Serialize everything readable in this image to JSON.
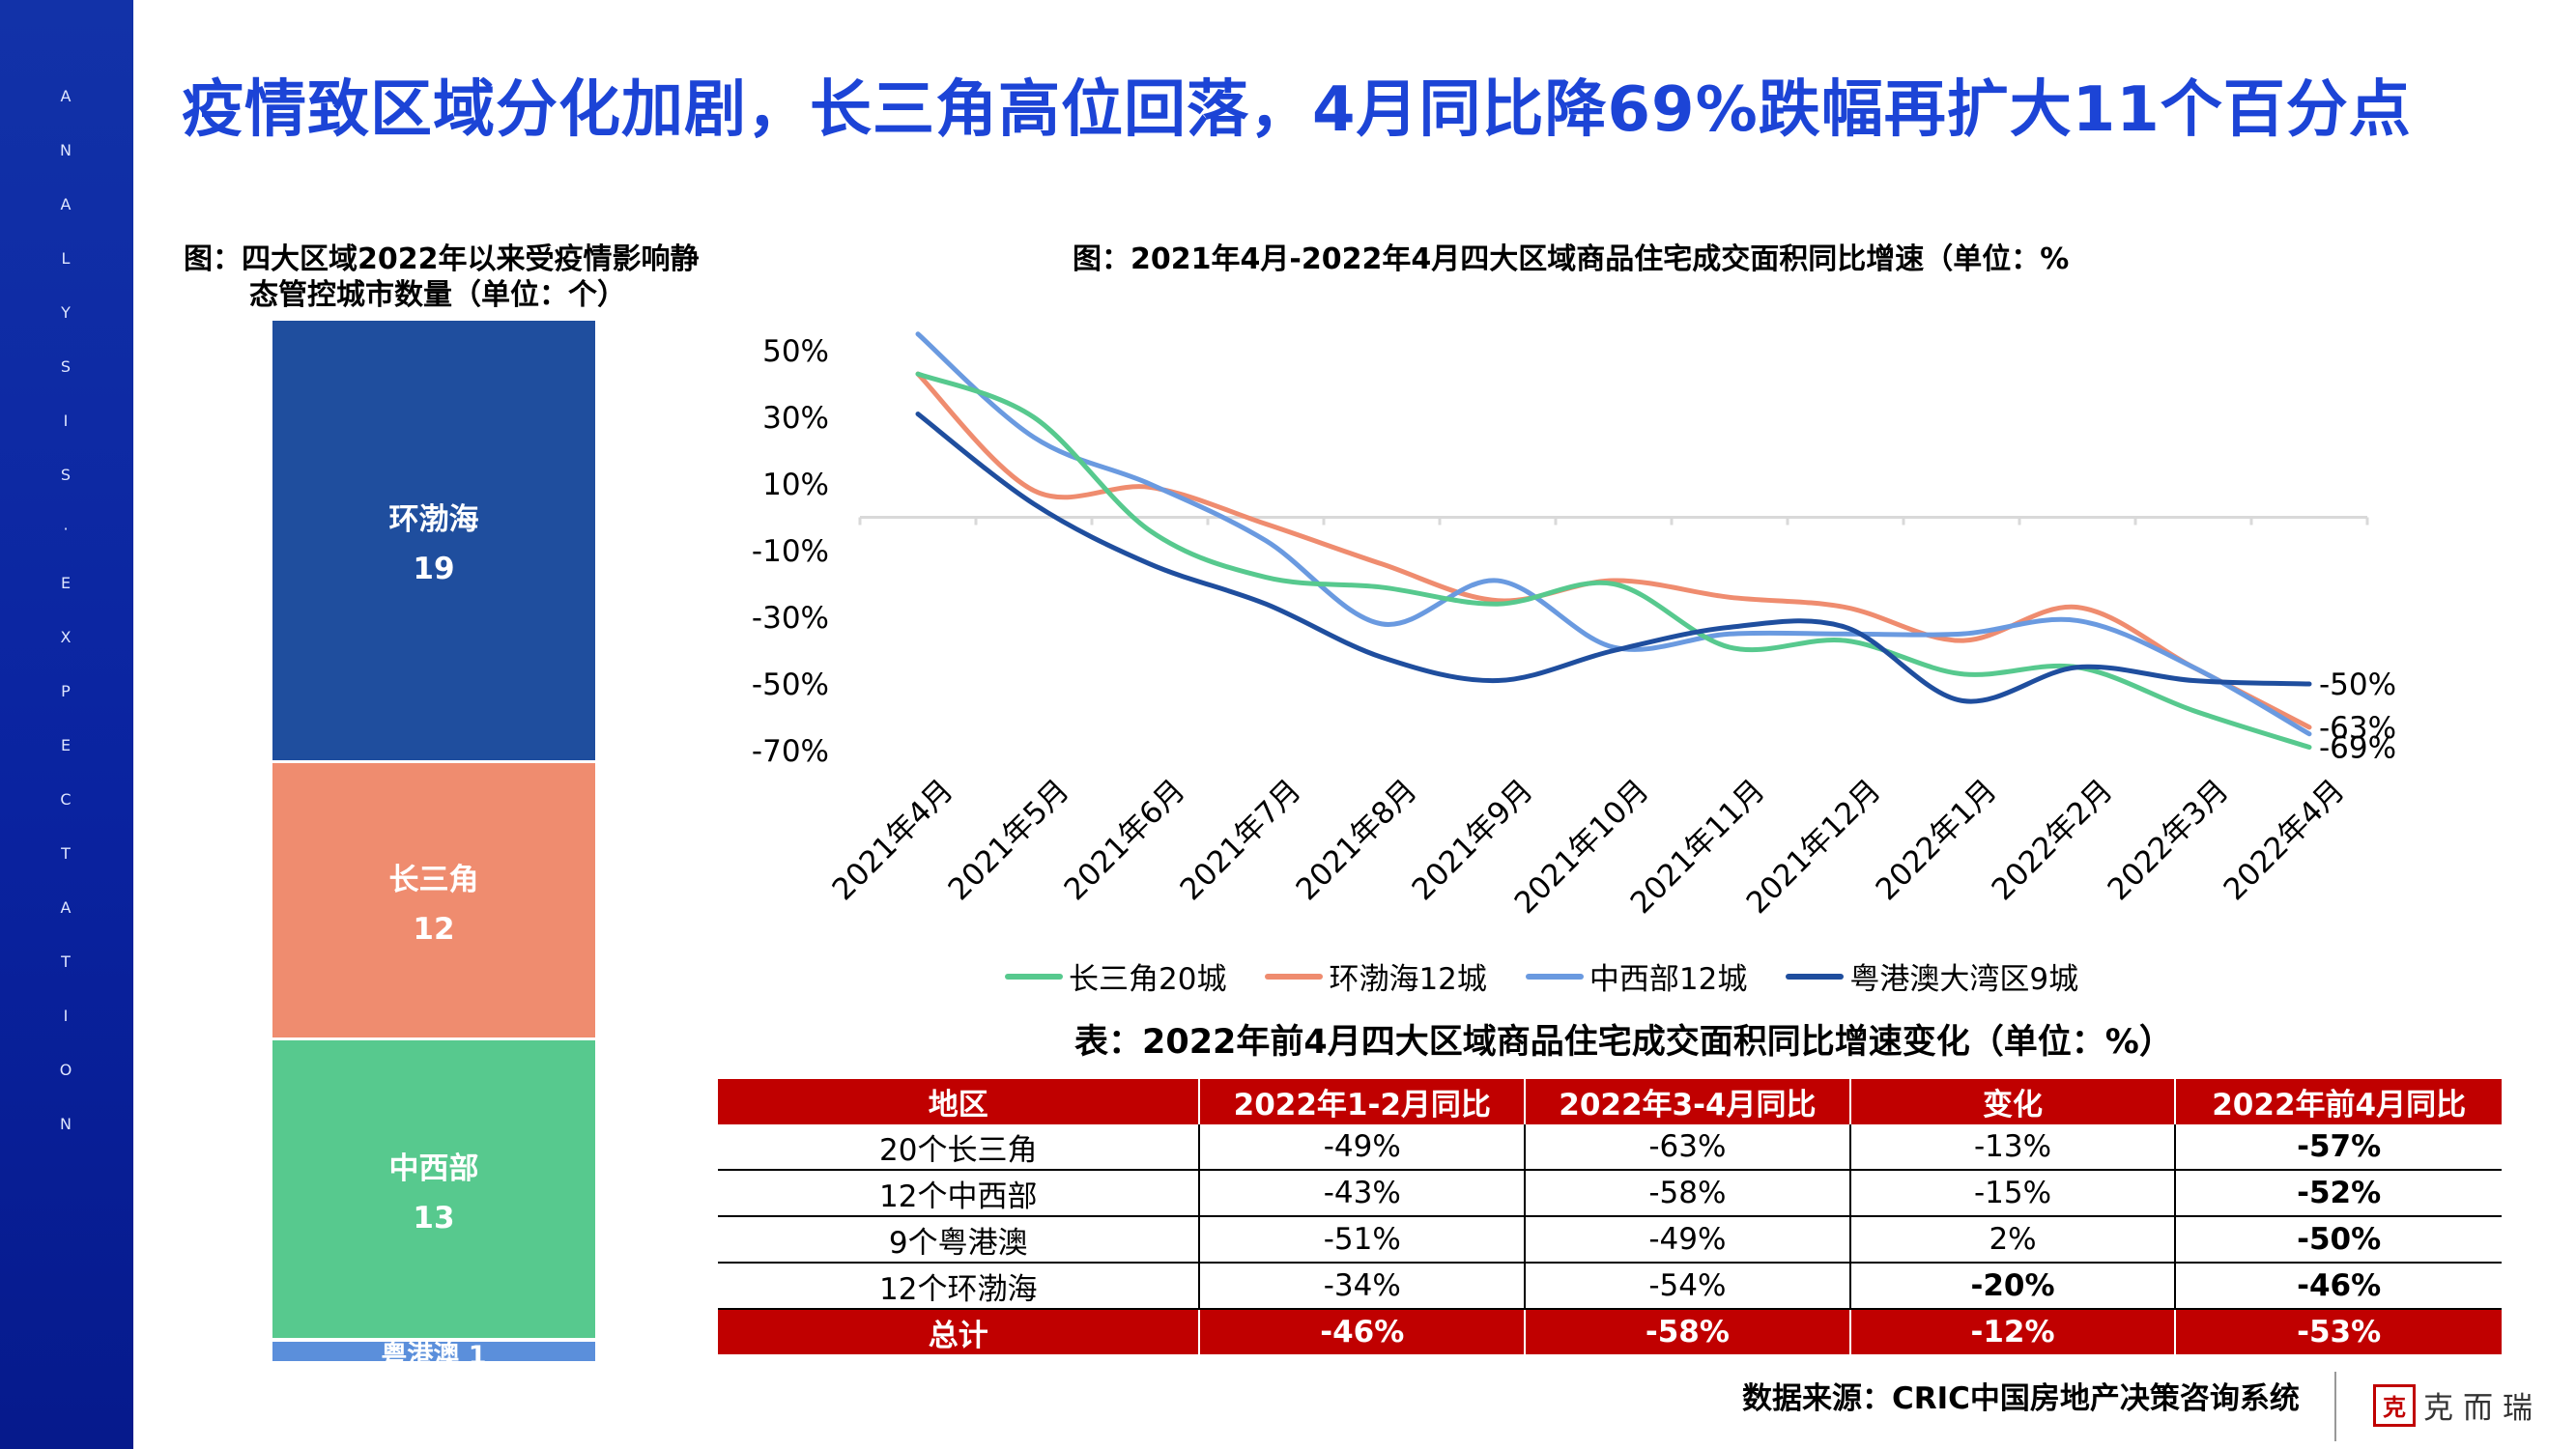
{
  "headline": "疫情致区域分化加剧，长三角高位回落，4月同比降69%跌幅再扩大11个百分点",
  "sidebar": {
    "letters": [
      "A",
      "N",
      "A",
      "L",
      "Y",
      "S",
      "I",
      "S",
      "·",
      "E",
      "X",
      "P",
      "E",
      "C",
      "T",
      "A",
      "T",
      "I",
      "O",
      "N"
    ]
  },
  "stack_chart": {
    "caption_line1": "图：四大区域2022年以来受疫情影响静",
    "caption_line2": "态管控城市数量（单位：个）",
    "segments": [
      {
        "name": "环渤海",
        "value": 19,
        "value_label": "19",
        "color": "#1f4e9e"
      },
      {
        "name": "长三角",
        "value": 12,
        "value_label": "12",
        "color": "#ef8c6f"
      },
      {
        "name": "中西部",
        "value": 13,
        "value_label": "13",
        "color": "#57c98e"
      },
      {
        "name": "粤港澳",
        "value": 1,
        "value_label": "粤港澳 1",
        "color": "#5b8fdb"
      }
    ]
  },
  "chart_data": {
    "type": "line",
    "title": "图：2021年4月-2022年4月四大区域商品住宅成交面积同比增速（单位：%",
    "x": [
      "2021年4月",
      "2021年5月",
      "2021年6月",
      "2021年7月",
      "2021年8月",
      "2021年9月",
      "2021年10月",
      "2021年11月",
      "2021年12月",
      "2022年1月",
      "2022年2月",
      "2022年3月",
      "2022年4月"
    ],
    "y_ticks": [
      "50%",
      "30%",
      "10%",
      "-10%",
      "-30%",
      "-50%",
      "-70%"
    ],
    "ylim": [
      -70,
      50
    ],
    "series": [
      {
        "name": "长三角20城",
        "color": "#57c98e",
        "values": [
          43,
          30,
          -4,
          -18,
          -21,
          -26,
          -20,
          -39,
          -37,
          -47,
          -45,
          -58,
          -69
        ]
      },
      {
        "name": "环渤海12城",
        "color": "#ef8c6f",
        "values": [
          43,
          8,
          9,
          -2,
          -14,
          -25,
          -19,
          -24,
          -27,
          -37,
          -27,
          -45,
          -63
        ]
      },
      {
        "name": "中西部12城",
        "color": "#6a9ae0",
        "values": [
          55,
          24,
          10,
          -7,
          -32,
          -19,
          -39,
          -35,
          -35,
          -35,
          -31,
          -45,
          -65
        ]
      },
      {
        "name": "粤港澳大湾区9城",
        "color": "#1f4e9e",
        "values": [
          31,
          4,
          -14,
          -26,
          -42,
          -49,
          -40,
          -33,
          -33,
          -55,
          -45,
          -49,
          -50
        ]
      }
    ],
    "end_labels": [
      "-50%",
      "-63%",
      "-69%"
    ],
    "legend_position": "bottom",
    "grid": false
  },
  "table": {
    "caption": "表：2022年前4月四大区域商品住宅成交面积同比增速变化（单位：%）",
    "headers": [
      "地区",
      "2022年1-2月同比",
      "2022年3-4月同比",
      "变化",
      "2022年前4月同比"
    ],
    "rows": [
      {
        "region": "20个长三角",
        "c1": "-49%",
        "c2": "-63%",
        "c3": "-13%",
        "c4": "-57%"
      },
      {
        "region": "12个中西部",
        "c1": "-43%",
        "c2": "-58%",
        "c3": "-15%",
        "c4": "-52%"
      },
      {
        "region": "9个粤港澳",
        "c1": "-51%",
        "c2": "-49%",
        "c3": "2%",
        "c4": "-50%"
      },
      {
        "region": "12个环渤海",
        "c1": "-34%",
        "c2": "-54%",
        "c3": "-20%",
        "c4": "-46%"
      }
    ],
    "total": {
      "region": "总计",
      "c1": "-46%",
      "c2": "-58%",
      "c3": "-12%",
      "c4": "-53%"
    }
  },
  "source": "数据来源：CRIC中国房地产决策咨询系统",
  "logo": {
    "seal": "克",
    "name": "克而瑞"
  }
}
